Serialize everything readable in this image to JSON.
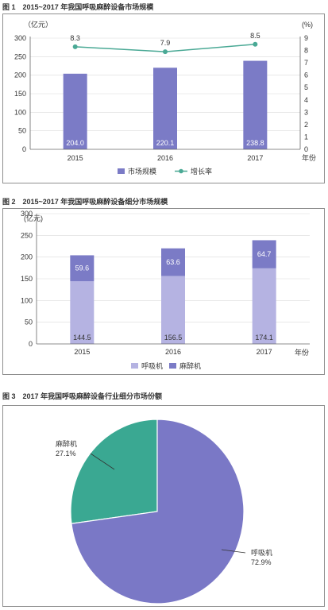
{
  "figures": {
    "fig1": {
      "title": "图 1　2015~2017 年我国呼吸麻醉设备市场规模",
      "left_unit": "（亿元）",
      "right_unit": "(%)",
      "x_unit": "年份",
      "legend_bar": "市场规模",
      "legend_line": "增长率"
    },
    "fig2": {
      "title": "图 2　2015~2017 年我国呼吸麻醉设备细分市场规模",
      "y_unit": "(亿元)",
      "x_unit": "年份",
      "legend_a": "呼吸机",
      "legend_b": "麻醉机"
    },
    "fig3": {
      "title": "图 3　2017 年我国呼吸麻醉设备行业细分市场份额",
      "slices": [
        {
          "name": "麻醉机",
          "pct": "27.1%"
        },
        {
          "name": "呼吸机",
          "pct": "72.9%"
        }
      ]
    }
  },
  "colors": {
    "bar": "#7b7bc6",
    "bar_light": "#b5b3e2",
    "line": "#4aa995",
    "pie_green": "#3aa892",
    "pie_purple": "#7a78c6"
  },
  "chart_data": [
    {
      "type": "bar",
      "categories": [
        "2015",
        "2016",
        "2017"
      ],
      "series": [
        {
          "name": "市场规模",
          "values": [
            204.0,
            220.1,
            238.8
          ],
          "labels": [
            "204.0",
            "220.1",
            "238.8"
          ],
          "axis": "left"
        },
        {
          "name": "增长率",
          "type": "line",
          "values": [
            8.3,
            7.9,
            8.5
          ],
          "labels": [
            "8.3",
            "7.9",
            "8.5"
          ],
          "axis": "right"
        }
      ],
      "title": "图 1　2015~2017 年我国呼吸麻醉设备市场规模",
      "ylim": [
        0,
        300
      ],
      "yticks": [
        "0",
        "50",
        "100",
        "150",
        "200",
        "250",
        "300"
      ],
      "y2lim": [
        0,
        9
      ],
      "y2ticks": [
        "0",
        "1",
        "2",
        "3",
        "4",
        "5",
        "6",
        "7",
        "8",
        "9"
      ],
      "legend": "bottom"
    },
    {
      "type": "bar",
      "stacked": true,
      "categories": [
        "2015",
        "2016",
        "2017"
      ],
      "series": [
        {
          "name": "呼吸机",
          "values": [
            144.5,
            156.5,
            174.1
          ],
          "labels": [
            "144.5",
            "156.5",
            "174.1"
          ]
        },
        {
          "name": "麻醉机",
          "values": [
            59.6,
            63.6,
            64.7
          ],
          "labels": [
            "59.6",
            "63.6",
            "64.7"
          ]
        }
      ],
      "title": "图 2　2015~2017 年我国呼吸麻醉设备细分市场规模",
      "ylim": [
        0,
        300
      ],
      "yticks": [
        "0",
        "50",
        "100",
        "150",
        "200",
        "250",
        "300"
      ],
      "legend": "bottom"
    },
    {
      "type": "pie",
      "categories": [
        "麻醉机",
        "呼吸机"
      ],
      "values": [
        27.1,
        72.9
      ],
      "title": "图 3　2017 年我国呼吸麻醉设备行业细分市场份额"
    }
  ]
}
